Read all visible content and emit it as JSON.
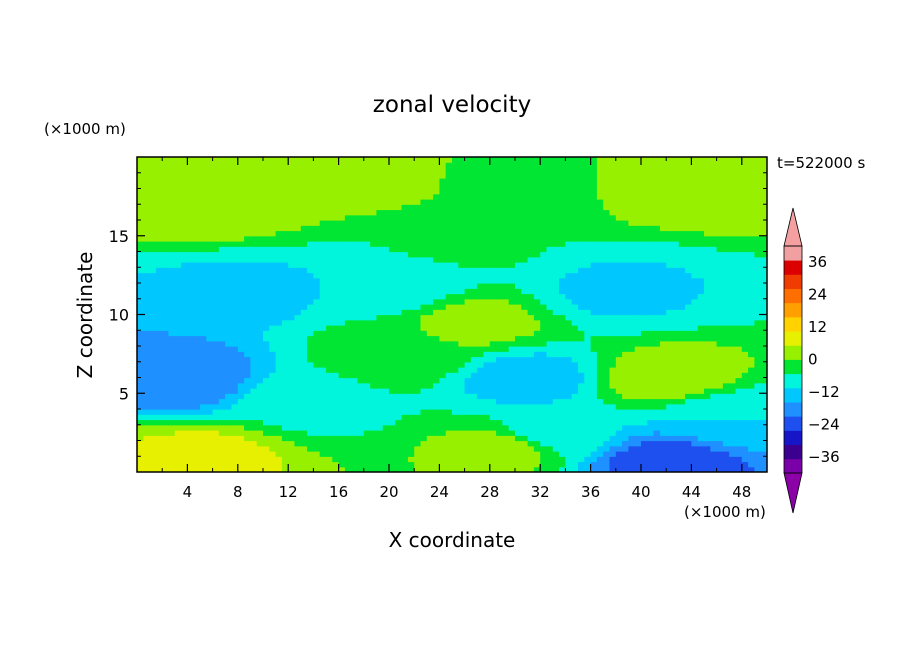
{
  "chart_data": {
    "type": "heatmap",
    "title": "zonal velocity",
    "xlabel": "X coordinate",
    "ylabel": "Z coordinate",
    "x_unit": "(×1000 m)",
    "y_unit": "(×1000 m)",
    "time_label": "t=522000 s",
    "xlim": [
      0,
      50
    ],
    "ylim": [
      0,
      20
    ],
    "x_ticks": [
      4,
      8,
      12,
      16,
      20,
      24,
      28,
      32,
      36,
      40,
      44,
      48
    ],
    "y_ticks": [
      5,
      10,
      15
    ],
    "colorbar": {
      "levels": [
        -42,
        -36,
        -30,
        -24,
        -18,
        -12,
        -6,
        0,
        6,
        12,
        18,
        24,
        30,
        36,
        42
      ],
      "tick_labels": [
        36,
        24,
        12,
        0,
        -12,
        -24,
        -36
      ],
      "colors": [
        "#7a00a8",
        "#3c0090",
        "#1616c8",
        "#1e50f0",
        "#1e90ff",
        "#00c8ff",
        "#00f5dc",
        "#00e632",
        "#96f000",
        "#e6f000",
        "#ffd200",
        "#ffa000",
        "#ff6e00",
        "#f03c00",
        "#dc0000",
        "#f0a0a0"
      ],
      "under_color": "#8c00a8",
      "over_color": "#f4a0a0"
    },
    "field_features": [
      {
        "x": 18,
        "z": 19.0,
        "value": 12
      },
      {
        "x": 44,
        "z": 18.5,
        "value": 12
      },
      {
        "x": 30,
        "z": 18.5,
        "value": 2
      },
      {
        "x": 25,
        "z": 14.8,
        "value": 2
      },
      {
        "x": 6,
        "z": 17.0,
        "value": 10
      },
      {
        "x": 8,
        "z": 11.5,
        "value": -8
      },
      {
        "x": 20,
        "z": 12.0,
        "value": -6
      },
      {
        "x": 38,
        "z": 11.5,
        "value": -7
      },
      {
        "x": 3,
        "z": 6.0,
        "value": -18
      },
      {
        "x": 21,
        "z": 7.5,
        "value": 5
      },
      {
        "x": 27,
        "z": 9.5,
        "value": 8
      },
      {
        "x": 31,
        "z": 6.0,
        "value": -9
      },
      {
        "x": 42,
        "z": 6.0,
        "value": 10
      },
      {
        "x": 14,
        "z": 4.5,
        "value": -2
      },
      {
        "x": 33,
        "z": 2.5,
        "value": -4
      },
      {
        "x": 5,
        "z": 1.0,
        "value": 14
      },
      {
        "x": 29,
        "z": 1.5,
        "value": 9
      },
      {
        "x": 42,
        "z": 0.6,
        "value": -22
      },
      {
        "x": 47,
        "z": 3.5,
        "value": -6
      }
    ]
  }
}
